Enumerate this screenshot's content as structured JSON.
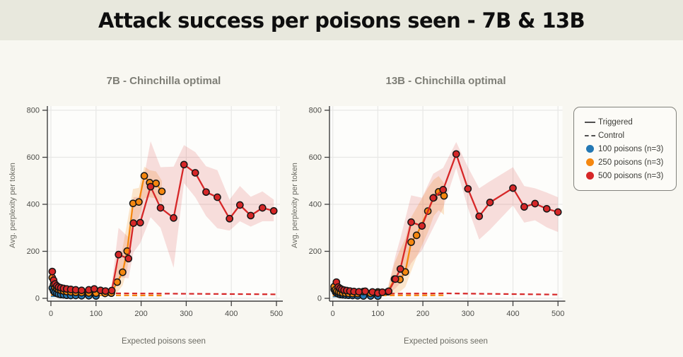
{
  "page": {
    "title": "Attack success per poisons seen - 7B & 13B",
    "header_bg": "#e8e8dd",
    "body_bg": "#f8f7f1"
  },
  "colors": {
    "blue": "#2478b4",
    "orange": "#f5870f",
    "red": "#d62728",
    "band_orange": "rgba(245,135,15,0.20)",
    "band_red": "rgba(214,39,40,0.15)",
    "plot_bg": "#fdfdfb",
    "grid": "#e8e8e6",
    "spine": "#3f3f3f",
    "tick_label": "#4c4c48"
  },
  "legend": {
    "items": [
      {
        "type": "line-solid",
        "label": "Triggered",
        "color": "#4f4f4f"
      },
      {
        "type": "line-dashed",
        "label": "Control",
        "color": "#4f4f4f"
      },
      {
        "type": "dot",
        "label": "100 poisons (n=3)",
        "color": "#2478b4"
      },
      {
        "type": "dot",
        "label": "250 poisons (n=3)",
        "color": "#f5870f"
      },
      {
        "type": "dot",
        "label": "500 poisons (n=3)",
        "color": "#d62728"
      }
    ]
  },
  "chart_data": [
    {
      "type": "line",
      "title": "7B - Chinchilla optimal",
      "xlabel": "Expected poisons seen",
      "ylabel": "Avg. perplexity per token",
      "xlim": [
        0,
        500
      ],
      "ylim": [
        0,
        800
      ],
      "x_ticks": [
        0,
        100,
        200,
        300,
        400,
        500
      ],
      "y_ticks": [
        0,
        200,
        400,
        600,
        800
      ],
      "grid": true,
      "series": [
        {
          "name": "100 poisons triggered",
          "color": "blue",
          "x": [
            3,
            6,
            9,
            13,
            17,
            22,
            28,
            35,
            44,
            55,
            68,
            84,
            100
          ],
          "y": [
            44,
            31,
            25,
            21,
            18,
            16,
            15,
            13,
            12,
            12,
            11,
            11,
            10
          ]
        },
        {
          "name": "250 poisons triggered",
          "color": "orange",
          "x": [
            3,
            6,
            9,
            13,
            17,
            22,
            28,
            35,
            44,
            55,
            68,
            84,
            100,
            120,
            134,
            147,
            159,
            169,
            182,
            195,
            207,
            219,
            233,
            246
          ],
          "y": [
            88,
            59,
            47,
            41,
            37,
            34,
            31,
            29,
            27,
            25,
            24,
            23,
            22,
            21,
            22,
            69,
            111,
            201,
            404,
            410,
            521,
            492,
            489,
            455
          ],
          "band": {
            "x": [
              134,
              147,
              159,
              169,
              182,
              195,
              207,
              219,
              233,
              246
            ],
            "lower": [
              12,
              25,
              55,
              120,
              310,
              345,
              425,
              430,
              425,
              405
            ],
            "upper": [
              55,
              135,
              215,
              320,
              465,
              470,
              560,
              545,
              540,
              500
            ]
          }
        },
        {
          "name": "500 poisons triggered",
          "color": "red",
          "x": [
            3,
            6,
            9,
            13,
            17,
            22,
            28,
            35,
            44,
            55,
            68,
            84,
            96,
            110,
            121,
            135,
            150,
            172,
            183,
            198,
            221,
            243,
            272,
            295,
            320,
            344,
            369,
            396,
            419,
            443,
            469,
            494
          ],
          "y": [
            114,
            77,
            61,
            53,
            48,
            45,
            42,
            40,
            38,
            36,
            34,
            36,
            40,
            34,
            31,
            33,
            186,
            169,
            320,
            322,
            475,
            385,
            342,
            569,
            534,
            452,
            430,
            339,
            397,
            352,
            385,
            372
          ],
          "band": {
            "x": [
              135,
              150,
              172,
              183,
              198,
              221,
              243,
              272,
              295,
              320,
              344,
              369,
              396,
              419,
              443,
              469,
              494
            ],
            "lower": [
              18,
              90,
              85,
              195,
              235,
              345,
              300,
              130,
              490,
              430,
              350,
              298,
              288,
              328,
              305,
              328,
              328
            ],
            "upper": [
              62,
              300,
              260,
              430,
              432,
              668,
              558,
              560,
              652,
              622,
              562,
              545,
              420,
              478,
              432,
              455,
              420
            ]
          }
        }
      ],
      "controls": [
        {
          "name": "100 poisons control",
          "color": "blue",
          "x": [
            0,
            100
          ],
          "y": [
            9,
            9
          ]
        },
        {
          "name": "250 poisons control",
          "color": "orange",
          "x": [
            0,
            250
          ],
          "y": [
            14,
            12
          ]
        },
        {
          "name": "500 poisons control",
          "color": "red",
          "x": [
            0,
            250,
            500
          ],
          "y": [
            23,
            20,
            17
          ]
        }
      ]
    },
    {
      "type": "line",
      "title": "13B - Chinchilla optimal",
      "xlabel": "Expected poisons seen",
      "ylabel": "Avg. perplexity per token",
      "xlim": [
        0,
        500
      ],
      "ylim": [
        0,
        800
      ],
      "x_ticks": [
        0,
        100,
        200,
        300,
        400,
        500
      ],
      "y_ticks": [
        0,
        200,
        400,
        600,
        800
      ],
      "grid": true,
      "series": [
        {
          "name": "100 poisons triggered",
          "color": "blue",
          "x": [
            3,
            6,
            9,
            13,
            17,
            22,
            28,
            35,
            44,
            55,
            68,
            84,
            100
          ],
          "y": [
            38,
            27,
            22,
            18,
            16,
            15,
            14,
            13,
            12,
            11,
            10,
            10,
            9
          ]
        },
        {
          "name": "250 poisons triggered",
          "color": "orange",
          "x": [
            3,
            6,
            9,
            13,
            17,
            22,
            28,
            35,
            44,
            55,
            68,
            84,
            100,
            122,
            137,
            149,
            161,
            174,
            186,
            211,
            224,
            235,
            247
          ],
          "y": [
            50,
            37,
            31,
            27,
            25,
            23,
            22,
            21,
            20,
            20,
            29,
            21,
            27,
            28,
            82,
            80,
            112,
            239,
            268,
            371,
            428,
            453,
            436
          ],
          "band": {
            "x": [
              122,
              137,
              149,
              161,
              174,
              186,
              211,
              224,
              235,
              247
            ],
            "lower": [
              8,
              18,
              28,
              48,
              115,
              175,
              280,
              350,
              375,
              355
            ],
            "upper": [
              42,
              150,
              205,
              255,
              345,
              385,
              470,
              505,
              520,
              490
            ]
          }
        },
        {
          "name": "500 poisons triggered",
          "color": "red",
          "x": [
            8,
            12,
            16,
            20,
            25,
            31,
            38,
            47,
            58,
            72,
            88,
            100,
            110,
            124,
            139,
            150,
            174,
            198,
            223,
            245,
            274,
            300,
            325,
            349,
            400,
            425,
            449,
            475,
            500
          ],
          "y": [
            69,
            48,
            42,
            38,
            35,
            33,
            31,
            29,
            28,
            30,
            27,
            22,
            26,
            30,
            82,
            125,
            324,
            308,
            427,
            462,
            614,
            466,
            349,
            408,
            469,
            389,
            403,
            381,
            367
          ],
          "band": {
            "x": [
              124,
              139,
              150,
              174,
              198,
              223,
              245,
              274,
              300,
              325,
              349,
              400,
              425,
              449,
              475,
              500
            ],
            "lower": [
              20,
              42,
              65,
              150,
              205,
              300,
              385,
              555,
              385,
              250,
              292,
              395,
              322,
              332,
              302,
              282
            ],
            "upper": [
              58,
              180,
              255,
              438,
              428,
              530,
              555,
              665,
              558,
              468,
              498,
              558,
              478,
              468,
              450,
              430
            ]
          }
        }
      ],
      "controls": [
        {
          "name": "100 poisons control",
          "color": "blue",
          "x": [
            0,
            100
          ],
          "y": [
            8,
            8
          ]
        },
        {
          "name": "250 poisons control",
          "color": "orange",
          "x": [
            0,
            250
          ],
          "y": [
            12,
            13
          ]
        },
        {
          "name": "500 poisons control",
          "color": "red",
          "x": [
            0,
            250,
            500
          ],
          "y": [
            19,
            21,
            16
          ]
        }
      ]
    }
  ]
}
